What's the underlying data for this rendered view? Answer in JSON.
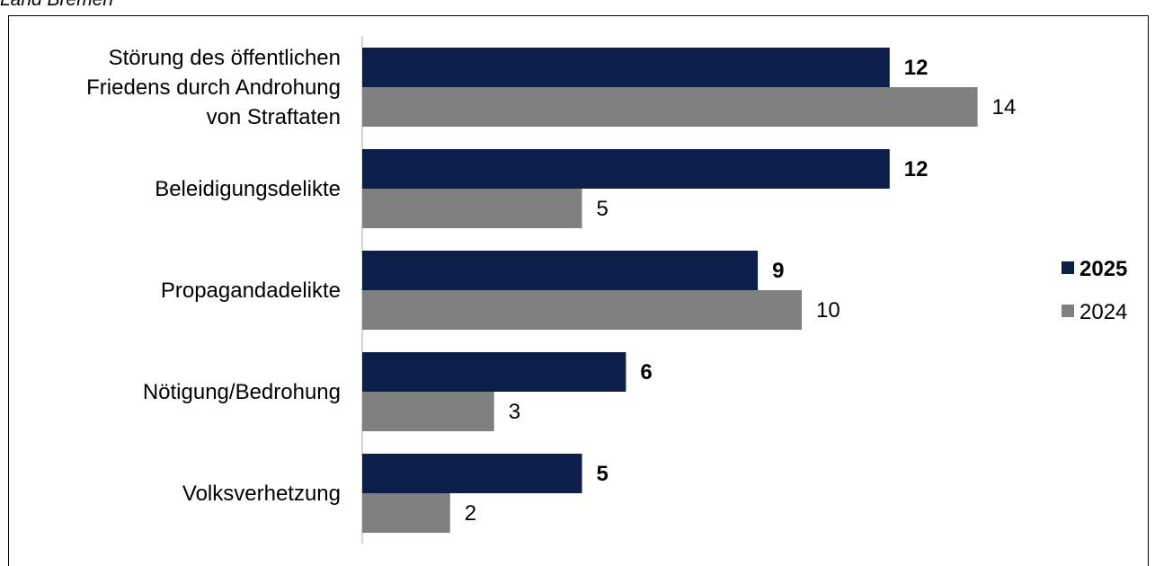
{
  "subtitle": "Land Bremen",
  "colors": {
    "series_2025": "#0c1f4a",
    "series_2024": "#808080",
    "axis": "#c8c8c8"
  },
  "chart_data": {
    "type": "bar",
    "orientation": "horizontal",
    "categories": [
      [
        "Störung des öffentlichen",
        "Friedens durch Androhung",
        "von Straftaten"
      ],
      [
        "Beleidigungsdelikte"
      ],
      [
        "Propagandadelikte"
      ],
      [
        "Nötigung/Bedrohung"
      ],
      [
        "Volksverhetzung"
      ]
    ],
    "series": [
      {
        "name": "2025",
        "values": [
          12,
          12,
          9,
          6,
          5
        ],
        "bold_labels": true
      },
      {
        "name": "2024",
        "values": [
          14,
          5,
          10,
          3,
          2
        ],
        "bold_labels": false
      }
    ],
    "xlim": [
      0,
      15
    ],
    "grid": false,
    "legend_position": "right"
  }
}
